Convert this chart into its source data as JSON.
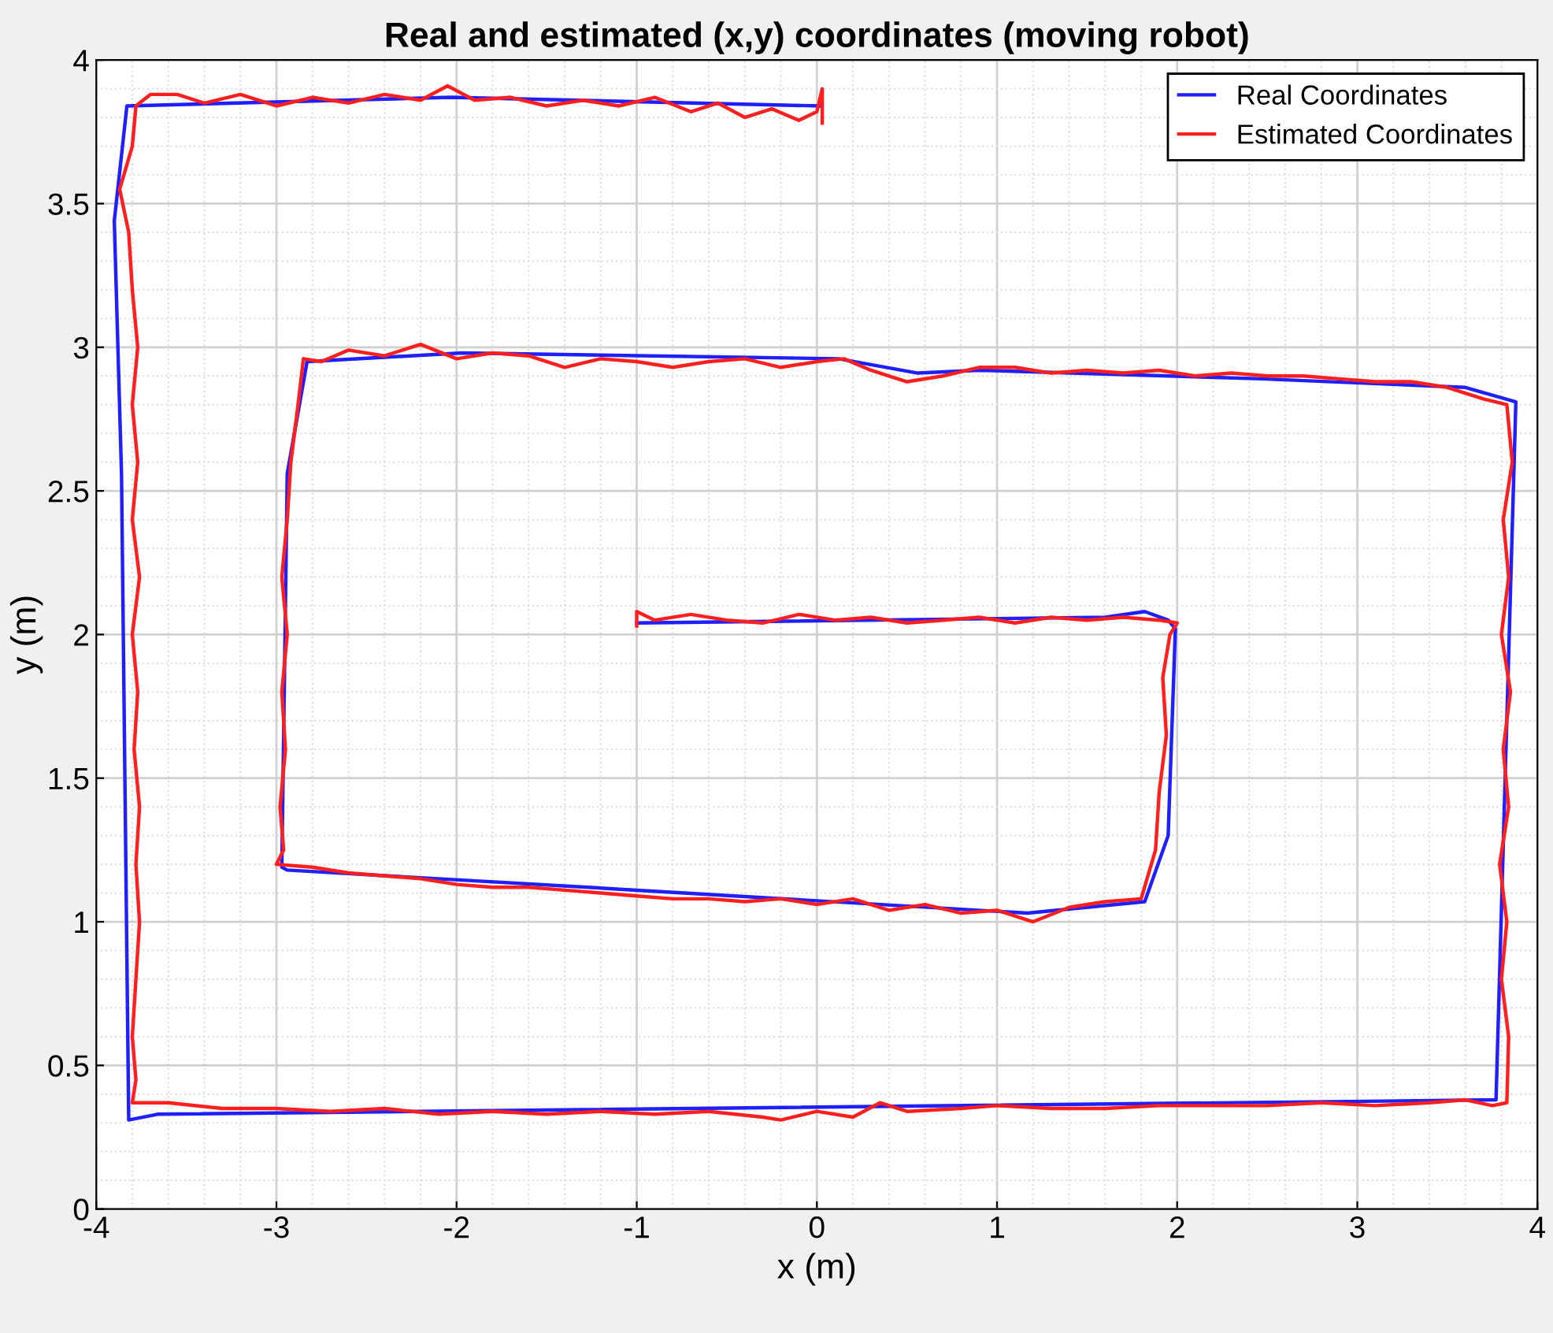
{
  "chart_data": {
    "type": "line",
    "title": "Real and estimated (x,y) coordinates (moving robot)",
    "xlabel": "x (m)",
    "ylabel": "y (m)",
    "xlim": [
      -4,
      4
    ],
    "ylim": [
      0,
      4
    ],
    "xticks": [
      -4,
      -3,
      -2,
      -1,
      0,
      1,
      2,
      3,
      4
    ],
    "yticks": [
      0,
      0.5,
      1,
      1.5,
      2,
      2.5,
      3,
      3.5,
      4
    ],
    "grid": true,
    "legend": "top right",
    "line_style": "solid",
    "marker": "none",
    "series": [
      {
        "name": "Real Coordinates",
        "color": "#1f1fff",
        "x": [
          0.02,
          -2.03,
          -3.83,
          -3.9,
          -3.86,
          -3.82,
          -3.66,
          3.77,
          3.88,
          3.6,
          2.47,
          0.9,
          0.56,
          0.12,
          -1.97,
          -2.83,
          -2.94,
          -2.97,
          -2.94,
          -1.0,
          1.17,
          1.82,
          1.95,
          1.99,
          1.95,
          1.82,
          1.6,
          -1.0
        ],
        "values": [
          3.84,
          3.87,
          3.84,
          3.44,
          2.56,
          0.31,
          0.33,
          0.38,
          2.81,
          2.86,
          2.89,
          2.92,
          2.91,
          2.96,
          2.98,
          2.95,
          2.56,
          1.19,
          1.18,
          1.11,
          1.03,
          1.07,
          1.3,
          2.02,
          2.05,
          2.08,
          2.06,
          2.04
        ]
      },
      {
        "name": "Estimated Coordinates",
        "color": "#ff1f1f",
        "x": [
          0.03,
          0.03,
          0.0,
          -0.1,
          -0.25,
          -0.4,
          -0.55,
          -0.7,
          -0.9,
          -1.1,
          -1.3,
          -1.5,
          -1.7,
          -1.9,
          -2.05,
          -2.2,
          -2.4,
          -2.6,
          -2.8,
          -3.0,
          -3.2,
          -3.4,
          -3.55,
          -3.7,
          -3.78,
          -3.8,
          -3.87,
          -3.82,
          -3.8,
          -3.77,
          -3.8,
          -3.77,
          -3.8,
          -3.76,
          -3.8,
          -3.77,
          -3.79,
          -3.76,
          -3.78,
          -3.76,
          -3.78,
          -3.8,
          -3.78,
          -3.8,
          -3.6,
          -3.3,
          -3.0,
          -2.7,
          -2.4,
          -2.1,
          -1.8,
          -1.5,
          -1.2,
          -0.9,
          -0.6,
          -0.3,
          -0.2,
          0.0,
          0.2,
          0.35,
          0.5,
          0.8,
          1.0,
          1.3,
          1.6,
          1.9,
          2.2,
          2.5,
          2.8,
          3.1,
          3.4,
          3.6,
          3.75,
          3.83,
          3.84,
          3.8,
          3.83,
          3.79,
          3.84,
          3.81,
          3.85,
          3.8,
          3.84,
          3.81,
          3.86,
          3.83,
          3.7,
          3.5,
          3.3,
          3.1,
          2.9,
          2.7,
          2.5,
          2.3,
          2.1,
          1.9,
          1.7,
          1.5,
          1.3,
          1.1,
          0.9,
          0.7,
          0.5,
          0.3,
          0.15,
          0.0,
          -0.2,
          -0.4,
          -0.6,
          -0.8,
          -1.0,
          -1.2,
          -1.4,
          -1.6,
          -1.8,
          -2.0,
          -2.2,
          -2.4,
          -2.6,
          -2.75,
          -2.85,
          -2.88,
          -2.92,
          -2.94,
          -2.97,
          -2.94,
          -2.97,
          -2.95,
          -2.98,
          -2.96,
          -3.0,
          -2.8,
          -2.6,
          -2.4,
          -2.2,
          -2.0,
          -1.8,
          -1.6,
          -1.4,
          -1.2,
          -1.0,
          -0.8,
          -0.6,
          -0.4,
          -0.2,
          0.0,
          0.2,
          0.4,
          0.6,
          0.8,
          1.0,
          1.2,
          1.4,
          1.6,
          1.8,
          1.88,
          1.9,
          1.94,
          1.92,
          1.96,
          2.0,
          1.9,
          1.7,
          1.5,
          1.3,
          1.1,
          0.9,
          0.7,
          0.5,
          0.3,
          0.1,
          -0.1,
          -0.3,
          -0.5,
          -0.7,
          -0.9,
          -1.0,
          -1.0
        ],
        "values": [
          3.78,
          3.9,
          3.82,
          3.79,
          3.83,
          3.8,
          3.85,
          3.82,
          3.87,
          3.84,
          3.86,
          3.84,
          3.87,
          3.86,
          3.91,
          3.86,
          3.88,
          3.85,
          3.87,
          3.84,
          3.88,
          3.85,
          3.88,
          3.88,
          3.84,
          3.7,
          3.55,
          3.4,
          3.2,
          3.0,
          2.8,
          2.6,
          2.4,
          2.2,
          2.0,
          1.8,
          1.6,
          1.4,
          1.2,
          1.0,
          0.8,
          0.6,
          0.45,
          0.37,
          0.37,
          0.35,
          0.35,
          0.34,
          0.35,
          0.33,
          0.34,
          0.33,
          0.34,
          0.33,
          0.34,
          0.32,
          0.31,
          0.34,
          0.32,
          0.37,
          0.34,
          0.35,
          0.36,
          0.35,
          0.35,
          0.36,
          0.36,
          0.36,
          0.37,
          0.36,
          0.37,
          0.38,
          0.36,
          0.37,
          0.6,
          0.8,
          1.0,
          1.2,
          1.4,
          1.6,
          1.8,
          2.0,
          2.2,
          2.4,
          2.6,
          2.8,
          2.82,
          2.86,
          2.88,
          2.88,
          2.89,
          2.9,
          2.9,
          2.91,
          2.9,
          2.92,
          2.91,
          2.92,
          2.91,
          2.93,
          2.93,
          2.9,
          2.88,
          2.92,
          2.96,
          2.95,
          2.93,
          2.96,
          2.95,
          2.93,
          2.95,
          2.96,
          2.93,
          2.97,
          2.98,
          2.96,
          3.01,
          2.97,
          2.99,
          2.95,
          2.96,
          2.8,
          2.6,
          2.4,
          2.2,
          2.0,
          1.8,
          1.6,
          1.4,
          1.25,
          1.2,
          1.19,
          1.17,
          1.16,
          1.15,
          1.13,
          1.12,
          1.12,
          1.11,
          1.1,
          1.09,
          1.08,
          1.08,
          1.07,
          1.08,
          1.06,
          1.08,
          1.04,
          1.06,
          1.03,
          1.04,
          1.0,
          1.05,
          1.07,
          1.08,
          1.25,
          1.45,
          1.65,
          1.85,
          2.0,
          2.04,
          2.05,
          2.06,
          2.05,
          2.06,
          2.04,
          2.06,
          2.05,
          2.04,
          2.06,
          2.05,
          2.07,
          2.04,
          2.05,
          2.07,
          2.05,
          2.08,
          2.03
        ]
      }
    ]
  }
}
